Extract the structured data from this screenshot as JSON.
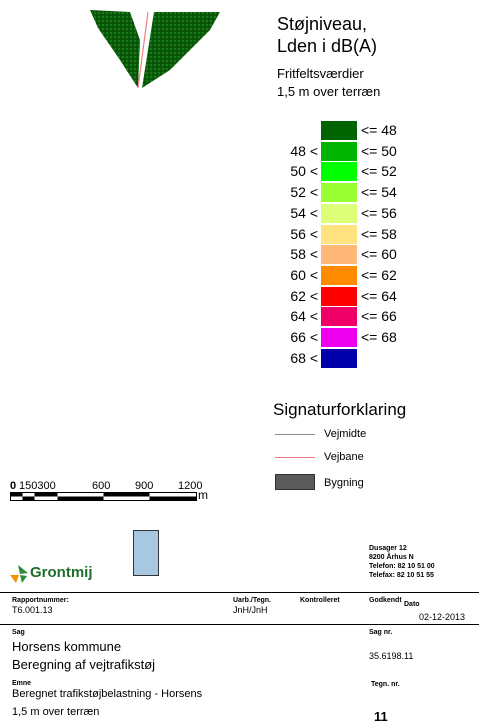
{
  "legend": {
    "title_line1": "Støjniveau,",
    "title_line2": "Lden i dB(A)",
    "subtitle_line1": "Fritfeltsværdier",
    "subtitle_line2": "1,5 m over terræn",
    "rows": [
      {
        "lower": "",
        "upper": "<= 48",
        "color": "#006400"
      },
      {
        "lower": "48 <",
        "upper": "<= 50",
        "color": "#00b400"
      },
      {
        "lower": "50 <",
        "upper": "<= 52",
        "color": "#00ff00"
      },
      {
        "lower": "52 <",
        "upper": "<= 54",
        "color": "#99ff33"
      },
      {
        "lower": "54 <",
        "upper": "<= 56",
        "color": "#ddff77"
      },
      {
        "lower": "56 <",
        "upper": "<= 58",
        "color": "#ffe380"
      },
      {
        "lower": "58 <",
        "upper": "<= 60",
        "color": "#ffb877"
      },
      {
        "lower": "60 <",
        "upper": "<= 62",
        "color": "#ff8c00"
      },
      {
        "lower": "62 <",
        "upper": "<= 64",
        "color": "#ff0000"
      },
      {
        "lower": "64 <",
        "upper": "<= 66",
        "color": "#ee0066"
      },
      {
        "lower": "66 <",
        "upper": "<= 68",
        "color": "#ee00ee"
      },
      {
        "lower": "68 <",
        "upper": "",
        "color": "#0000aa"
      }
    ]
  },
  "signatur": {
    "title": "Signaturforklaring",
    "items": [
      {
        "label": "Vejmidte",
        "color": "#8c8c8c"
      },
      {
        "label": "Vejbane",
        "color": "#f08080"
      },
      {
        "label": "Bygning",
        "color": "#5a5a5a"
      }
    ]
  },
  "scalebar": {
    "labels": [
      "0",
      "150300",
      "600",
      "900",
      "1200"
    ],
    "unit": "m"
  },
  "titleblock": {
    "company": "Grontmij",
    "address": [
      "Dusager 12",
      "8200 Århus N",
      "Telefon: 82 10 51 00",
      "Telefax: 82 10 51 55"
    ],
    "rapport_label": "Rapportnummer:",
    "rapport_value": "T6.001.13",
    "udarb_label": "Uarb./Tegn.",
    "udarb_value": "JnH/JnH",
    "kontrol_label": "Kontrolleret",
    "godkendt_label": "Godkendt",
    "dato_label": "Dato",
    "dato_value": "02-12-2013",
    "sag_label": "Sag",
    "sag_line1": "Horsens kommune",
    "sag_line2": "Beregning af vejtrafikstøj",
    "sagnr_label": "Sag nr.",
    "sagnr_value": "35.6198.11",
    "emne_label": "Emne",
    "emne_line1": "Beregnet trafikstøjbelastning - Horsens",
    "emne_line2": "1,5 m over terræn",
    "tegnnr_label": "Tegn. nr.",
    "tegnnr_value": "11",
    "colors": {
      "logo_green": "#2e8b3a",
      "logo_orange": "#f39200",
      "key_map_fill": "#a6c8e0"
    }
  }
}
